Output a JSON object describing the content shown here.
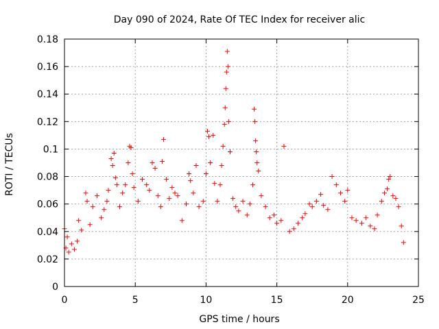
{
  "chart_data": {
    "type": "scatter",
    "title": "Day 090 of 2024, Rate Of TEC Index for receiver alic",
    "xlabel": "GPS time / hours",
    "ylabel": "ROTI / TECUs",
    "xlim": [
      0,
      25
    ],
    "ylim": [
      0,
      0.18
    ],
    "xticks": [
      0,
      5,
      10,
      15,
      20,
      25
    ],
    "xtick_labels": [
      "0",
      "5",
      "10",
      "15",
      "20",
      "25"
    ],
    "yticks": [
      0,
      0.02,
      0.04,
      0.06,
      0.08,
      0.1,
      0.12,
      0.14,
      0.16,
      0.18
    ],
    "ytick_labels": [
      "0",
      "0.02",
      "0.04",
      "0.06",
      "0.08",
      "0.1",
      "0.12",
      "0.14",
      "0.16",
      "0.18"
    ],
    "grid": true,
    "marker": "+",
    "marker_color": "#ff0000",
    "series": [
      {
        "name": "ROTI",
        "points": [
          [
            0.0,
            0.042
          ],
          [
            0.1,
            0.028
          ],
          [
            0.2,
            0.036
          ],
          [
            0.3,
            0.025
          ],
          [
            0.5,
            0.031
          ],
          [
            0.7,
            0.027
          ],
          [
            0.9,
            0.033
          ],
          [
            1.0,
            0.048
          ],
          [
            1.2,
            0.041
          ],
          [
            1.5,
            0.068
          ],
          [
            1.6,
            0.062
          ],
          [
            1.8,
            0.045
          ],
          [
            2.0,
            0.058
          ],
          [
            2.3,
            0.066
          ],
          [
            2.6,
            0.05
          ],
          [
            2.8,
            0.056
          ],
          [
            3.0,
            0.062
          ],
          [
            3.1,
            0.07
          ],
          [
            3.3,
            0.093
          ],
          [
            3.4,
            0.088
          ],
          [
            3.5,
            0.097
          ],
          [
            3.6,
            0.079
          ],
          [
            3.7,
            0.074
          ],
          [
            3.9,
            0.058
          ],
          [
            4.1,
            0.068
          ],
          [
            4.3,
            0.074
          ],
          [
            4.5,
            0.09
          ],
          [
            4.6,
            0.102
          ],
          [
            4.7,
            0.101
          ],
          [
            4.8,
            0.082
          ],
          [
            4.9,
            0.072
          ],
          [
            5.2,
            0.062
          ],
          [
            5.5,
            0.078
          ],
          [
            5.8,
            0.074
          ],
          [
            6.0,
            0.07
          ],
          [
            6.2,
            0.09
          ],
          [
            6.4,
            0.086
          ],
          [
            6.6,
            0.066
          ],
          [
            6.8,
            0.058
          ],
          [
            6.9,
            0.091
          ],
          [
            7.0,
            0.107
          ],
          [
            7.2,
            0.078
          ],
          [
            7.4,
            0.064
          ],
          [
            7.6,
            0.072
          ],
          [
            7.8,
            0.068
          ],
          [
            8.0,
            0.066
          ],
          [
            8.3,
            0.048
          ],
          [
            8.6,
            0.06
          ],
          [
            8.8,
            0.082
          ],
          [
            8.9,
            0.077
          ],
          [
            9.1,
            0.068
          ],
          [
            9.3,
            0.088
          ],
          [
            9.5,
            0.058
          ],
          [
            9.8,
            0.062
          ],
          [
            10.0,
            0.082
          ],
          [
            10.1,
            0.113
          ],
          [
            10.2,
            0.109
          ],
          [
            10.3,
            0.09
          ],
          [
            10.5,
            0.11
          ],
          [
            10.6,
            0.075
          ],
          [
            10.8,
            0.062
          ],
          [
            11.0,
            0.074
          ],
          [
            11.1,
            0.088
          ],
          [
            11.2,
            0.102
          ],
          [
            11.3,
            0.118
          ],
          [
            11.35,
            0.13
          ],
          [
            11.4,
            0.144
          ],
          [
            11.45,
            0.156
          ],
          [
            11.5,
            0.171
          ],
          [
            11.55,
            0.16
          ],
          [
            11.6,
            0.12
          ],
          [
            11.7,
            0.098
          ],
          [
            11.9,
            0.064
          ],
          [
            12.1,
            0.058
          ],
          [
            12.3,
            0.055
          ],
          [
            12.6,
            0.062
          ],
          [
            12.9,
            0.052
          ],
          [
            13.1,
            0.06
          ],
          [
            13.3,
            0.074
          ],
          [
            13.4,
            0.129
          ],
          [
            13.45,
            0.12
          ],
          [
            13.5,
            0.106
          ],
          [
            13.55,
            0.098
          ],
          [
            13.6,
            0.09
          ],
          [
            13.7,
            0.084
          ],
          [
            13.9,
            0.066
          ],
          [
            14.2,
            0.058
          ],
          [
            14.5,
            0.05
          ],
          [
            14.8,
            0.052
          ],
          [
            15.0,
            0.046
          ],
          [
            15.3,
            0.048
          ],
          [
            15.5,
            0.102
          ],
          [
            15.9,
            0.04
          ],
          [
            16.2,
            0.042
          ],
          [
            16.5,
            0.046
          ],
          [
            16.8,
            0.05
          ],
          [
            17.0,
            0.053
          ],
          [
            17.3,
            0.06
          ],
          [
            17.5,
            0.058
          ],
          [
            17.8,
            0.062
          ],
          [
            18.1,
            0.067
          ],
          [
            18.3,
            0.059
          ],
          [
            18.6,
            0.056
          ],
          [
            18.9,
            0.08
          ],
          [
            19.2,
            0.074
          ],
          [
            19.5,
            0.068
          ],
          [
            19.8,
            0.062
          ],
          [
            20.0,
            0.07
          ],
          [
            20.3,
            0.05
          ],
          [
            20.6,
            0.048
          ],
          [
            21.0,
            0.046
          ],
          [
            21.3,
            0.05
          ],
          [
            21.6,
            0.044
          ],
          [
            21.9,
            0.042
          ],
          [
            22.1,
            0.052
          ],
          [
            22.4,
            0.062
          ],
          [
            22.6,
            0.068
          ],
          [
            22.8,
            0.071
          ],
          [
            22.9,
            0.078
          ],
          [
            23.0,
            0.08
          ],
          [
            23.2,
            0.066
          ],
          [
            23.4,
            0.064
          ],
          [
            23.6,
            0.058
          ],
          [
            23.8,
            0.044
          ],
          [
            23.95,
            0.032
          ]
        ]
      }
    ]
  }
}
